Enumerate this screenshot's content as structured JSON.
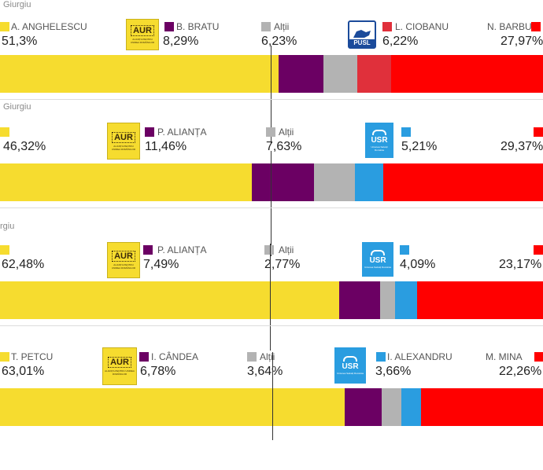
{
  "colors": {
    "ind": "#f6dc2f",
    "aur": "#6b0063",
    "altii": "#b3b3b3",
    "red_light": "#e0303b",
    "usr": "#2a9de0",
    "psd": "#ff0000"
  },
  "logos": {
    "aur_text": "AUR",
    "aur_sub": "ALIANȚA PENTRU UNIREA ROMÂNILOR",
    "pusl_text": "PUSL",
    "usr_text": "USR",
    "usr_sub": "Uniunea Salvați România"
  },
  "chart_data": [
    {
      "type": "bar",
      "title": "",
      "region": "Giurgiu",
      "series": [
        {
          "name": "A. ANGHELESCU",
          "label": "51,3%",
          "value": 51.3,
          "color": "ind"
        },
        {
          "name": "B. BRATU",
          "label": "8,29%",
          "value": 8.29,
          "color": "aur"
        },
        {
          "name": "Alții",
          "label": "6,23%",
          "value": 6.23,
          "color": "altii"
        },
        {
          "name": "L. CIOBANU",
          "label": "6,22%",
          "value": 6.22,
          "color": "red_light"
        },
        {
          "name": "N. BARBU",
          "label": "27,97%",
          "value": 27.97,
          "color": "psd"
        }
      ]
    },
    {
      "type": "bar",
      "title": "",
      "region": "Giurgiu",
      "series": [
        {
          "name": "",
          "label": "46,32%",
          "value": 46.32,
          "color": "ind"
        },
        {
          "name": "P. ALIANȚA",
          "label": "11,46%",
          "value": 11.46,
          "color": "aur"
        },
        {
          "name": "Alții",
          "label": "7,63%",
          "value": 7.63,
          "color": "altii"
        },
        {
          "name": "",
          "label": "5,21%",
          "value": 5.21,
          "color": "usr"
        },
        {
          "name": "",
          "label": "29,37%",
          "value": 29.37,
          "color": "psd"
        }
      ]
    },
    {
      "type": "bar",
      "title": "",
      "region": "rgiu",
      "series": [
        {
          "name": "",
          "label": "62,48%",
          "value": 62.48,
          "color": "ind"
        },
        {
          "name": "P. ALIANȚA",
          "label": "7,49%",
          "value": 7.49,
          "color": "aur"
        },
        {
          "name": "Alții",
          "label": "2,77%",
          "value": 2.77,
          "color": "altii"
        },
        {
          "name": "",
          "label": "4,09%",
          "value": 4.09,
          "color": "usr"
        },
        {
          "name": "",
          "label": "23,17%",
          "value": 23.17,
          "color": "psd"
        }
      ]
    },
    {
      "type": "bar",
      "title": "",
      "region": "",
      "series": [
        {
          "name": "T. PETCU",
          "label": "63,01%",
          "value": 63.01,
          "color": "ind"
        },
        {
          "name": "I. CÂNDEA",
          "label": "6,78%",
          "value": 6.78,
          "color": "aur"
        },
        {
          "name": "Alții",
          "label": "3,64%",
          "value": 3.64,
          "color": "altii"
        },
        {
          "name": "I. ALEXANDRU",
          "label": "3,66%",
          "value": 3.66,
          "color": "usr"
        },
        {
          "name": "M. MINA",
          "label": "22,26%",
          "value": 22.26,
          "color": "psd"
        }
      ]
    }
  ]
}
